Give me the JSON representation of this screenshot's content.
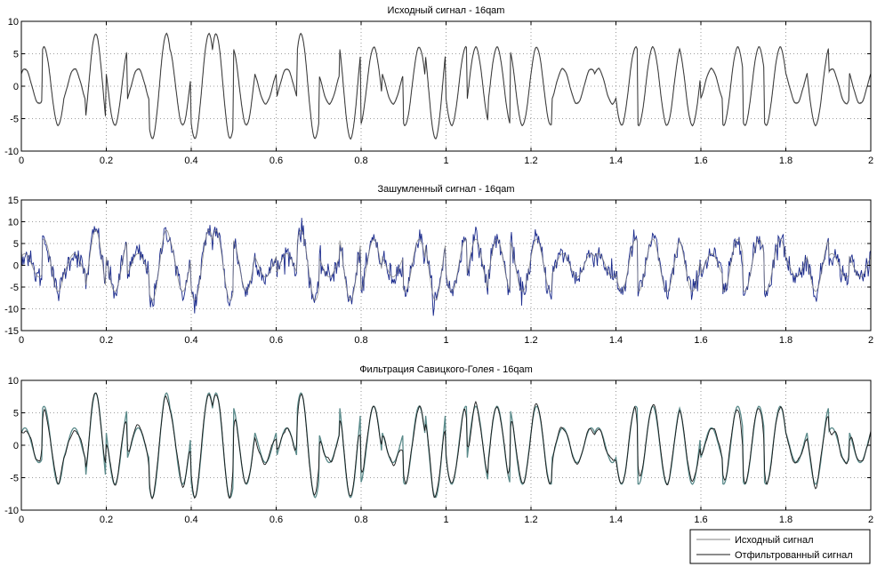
{
  "figure": {
    "colors": {
      "original": "#808080",
      "noisy": "#1a2a8c",
      "filtered": "#1a1a1a",
      "filtered_overlay": "#5a8a8a",
      "grid": "#7f7f7f",
      "axes": "#000000"
    }
  },
  "legend": {
    "placement": "bottom-right",
    "items": [
      {
        "label": "Исходный сигнал",
        "color": "#808080"
      },
      {
        "label": "Отфильтрованный сигнал",
        "color": "#1a1a1a"
      }
    ]
  },
  "chart_data": [
    {
      "type": "line",
      "title": "Исходный сигнал - 16qam",
      "xlim": [
        0,
        2
      ],
      "ylim": [
        -10,
        10
      ],
      "xticks": [
        "0",
        "0.2",
        "0.4",
        "0.6",
        "0.8",
        "1",
        "1.2",
        "1.4",
        "1.6",
        "1.8",
        "2"
      ],
      "yticks": [
        "-10",
        "-5",
        "0",
        "5",
        "10"
      ],
      "grid": true,
      "signal": "original"
    },
    {
      "type": "line",
      "title": "Зашумленный сигнал - 16qam",
      "xlim": [
        0,
        2
      ],
      "ylim": [
        -15,
        15
      ],
      "xticks": [
        "0",
        "0.2",
        "0.4",
        "0.6",
        "0.8",
        "1",
        "1.2",
        "1.4",
        "1.6",
        "1.8",
        "2"
      ],
      "yticks": [
        "-15",
        "-10",
        "-5",
        "0",
        "5",
        "10",
        "15"
      ],
      "grid": true,
      "signal": "noisy"
    },
    {
      "type": "line",
      "title": "Фильтрация Савицкого-Голея - 16qam",
      "xlim": [
        0,
        2
      ],
      "ylim": [
        -10,
        10
      ],
      "xticks": [
        "0",
        "0.2",
        "0.4",
        "0.6",
        "0.8",
        "1",
        "1.2",
        "1.4",
        "1.6",
        "1.8",
        "2"
      ],
      "yticks": [
        "-10",
        "-5",
        "0",
        "5",
        "10"
      ],
      "grid": true,
      "signal": "filtered"
    }
  ]
}
